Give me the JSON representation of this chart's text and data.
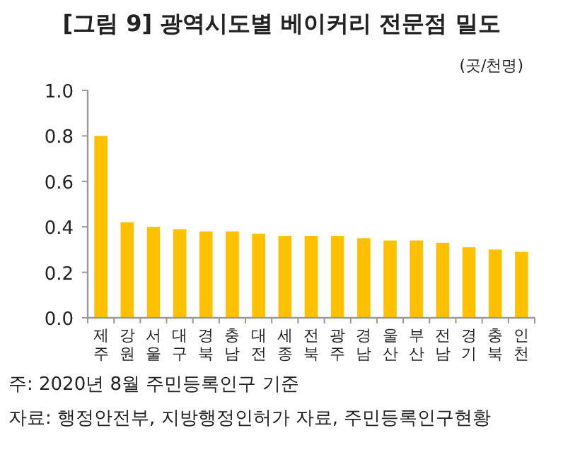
{
  "chart_data": {
    "type": "bar",
    "title": "[그림 9] 광역시도별 베이커리 전문점 밀도",
    "ylabel": "(곳/천명)",
    "categories": [
      "제주",
      "강원",
      "서울",
      "대구",
      "경북",
      "충남",
      "대전",
      "세종",
      "전북",
      "광주",
      "경남",
      "울산",
      "부산",
      "전남",
      "경기",
      "충북",
      "인천"
    ],
    "values": [
      0.8,
      0.42,
      0.4,
      0.39,
      0.38,
      0.38,
      0.37,
      0.36,
      0.36,
      0.36,
      0.35,
      0.34,
      0.34,
      0.33,
      0.31,
      0.3,
      0.29
    ],
    "color": "#ffc000",
    "ylim": [
      0,
      1.0
    ],
    "yticks": [
      {
        "value": 0,
        "label": "0.0"
      },
      {
        "value": 0.2,
        "label": "0.2"
      },
      {
        "value": 0.4,
        "label": "0.4"
      },
      {
        "value": 0.6,
        "label": "0.6"
      },
      {
        "value": 0.8,
        "label": "0.8"
      },
      {
        "value": 1.0,
        "label": "1.0"
      }
    ],
    "grid": false,
    "annotations": [
      "주: 2020년 8월 주민등록인구 기준",
      "자료: 행정안전부, 지방행정인허가 자료, 주민등록인구현황"
    ]
  }
}
